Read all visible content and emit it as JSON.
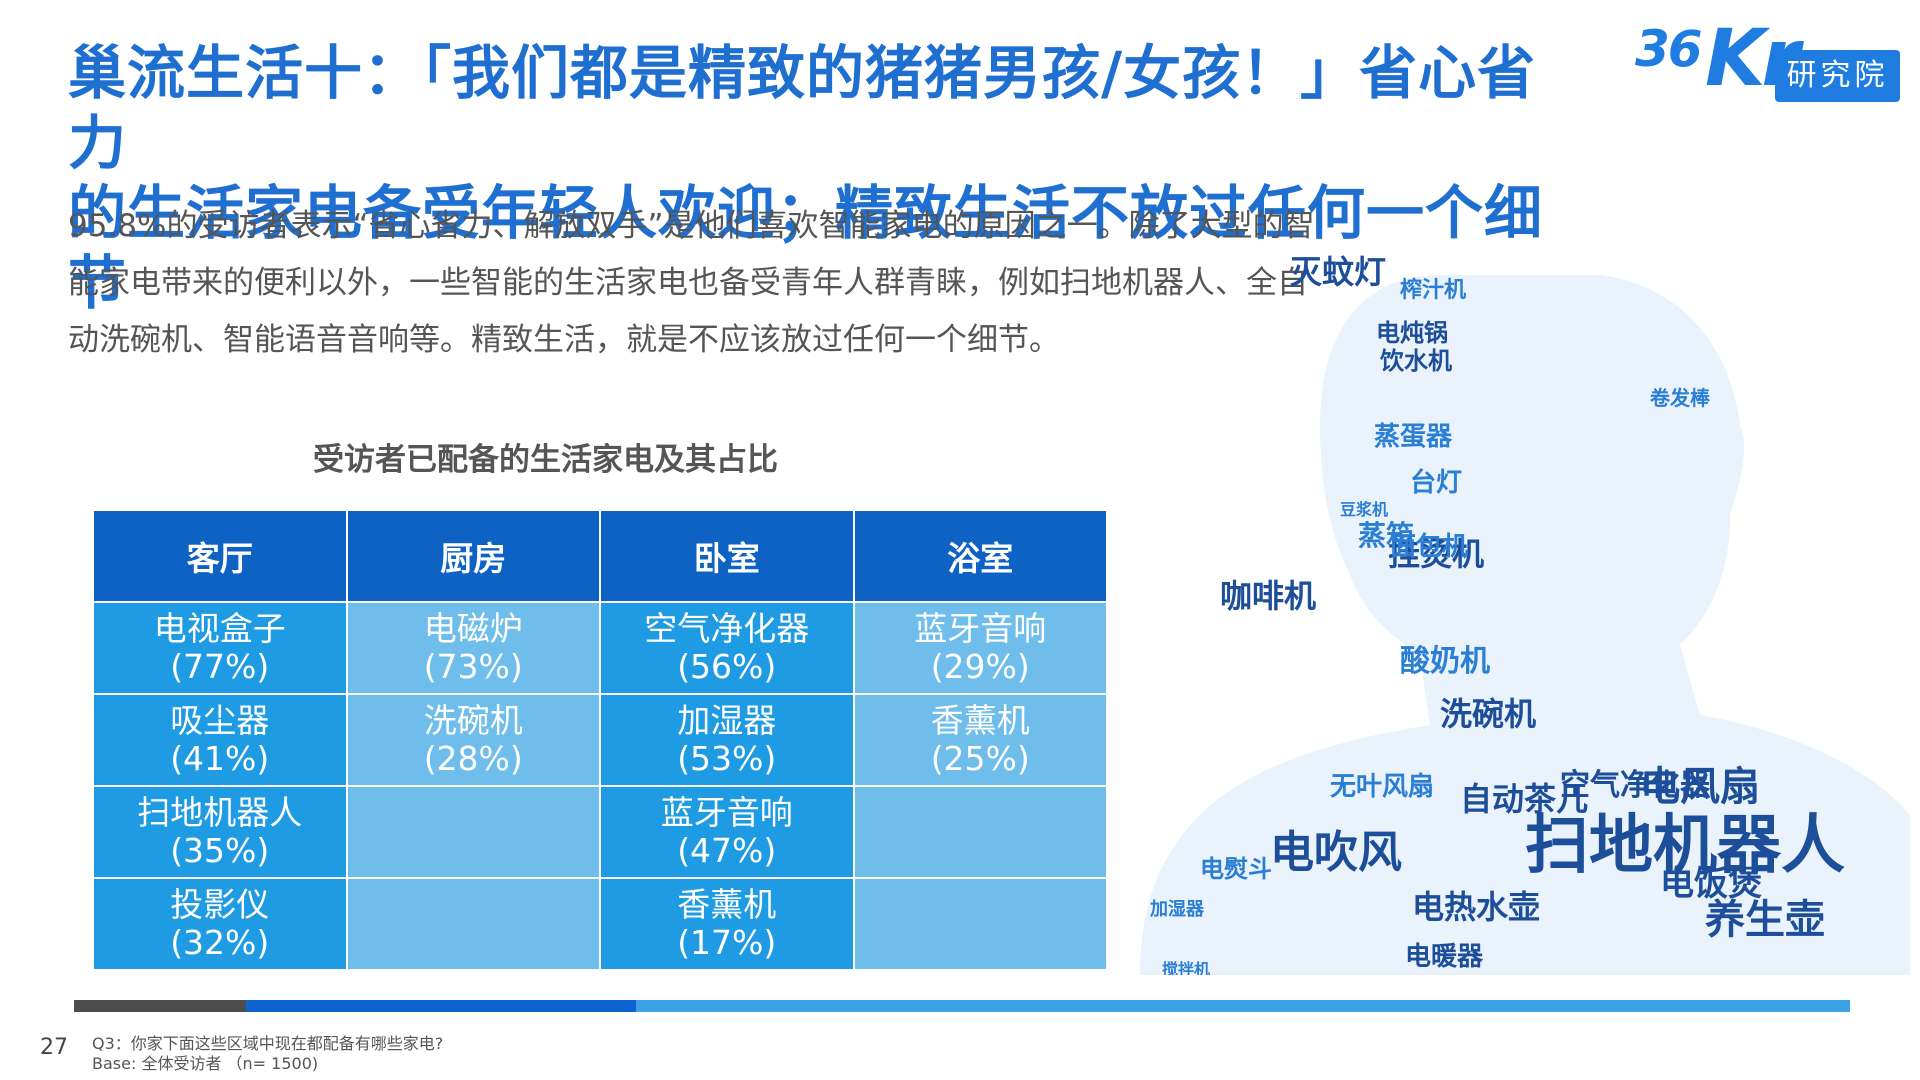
{
  "title_line1": "巢流生活十：「我们都是精致的猪猪男孩/女孩！」省心省力",
  "title_line2": "的生活家电备受年轻人欢迎；精致生活不放过任何一个细节",
  "logo": {
    "brand_36": "36",
    "brand_kr": "Kr",
    "label": "研究院"
  },
  "intro_text": "95.8%的受访者表示“省心省力、解放双手”是他们喜欢智能家电的原因之一。除了大型的智能家电带来的便利以外，一些智能的生活家电也备受青年人群青睐，例如扫地机器人、全自动洗碗机、智能语音音响等。精致生活，就是不应该放过任何一个细节。",
  "table_title": "受访者已配备的生活家电及其占比",
  "table": {
    "headers": [
      "客厅",
      "厨房",
      "卧室",
      "浴室"
    ],
    "rows": [
      [
        {
          "name": "电视盒子",
          "pct": "(77%)"
        },
        {
          "name": "电磁炉",
          "pct": "(73%)"
        },
        {
          "name": "空气净化器",
          "pct": "(56%)"
        },
        {
          "name": "蓝牙音响",
          "pct": "(29%)"
        }
      ],
      [
        {
          "name": "吸尘器",
          "pct": "(41%)"
        },
        {
          "name": "洗碗机",
          "pct": "(28%)"
        },
        {
          "name": "加湿器",
          "pct": "(53%)"
        },
        {
          "name": "香薰机",
          "pct": "(25%)"
        }
      ],
      [
        {
          "name": "扫地机器人",
          "pct": "(35%)"
        },
        {
          "name": "",
          "pct": ""
        },
        {
          "name": "蓝牙音响",
          "pct": "(47%)"
        },
        {
          "name": "",
          "pct": ""
        }
      ],
      [
        {
          "name": "投影仪",
          "pct": "(32%)"
        },
        {
          "name": "",
          "pct": ""
        },
        {
          "name": "香薰机",
          "pct": "(17%)"
        },
        {
          "name": "",
          "pct": ""
        }
      ]
    ]
  },
  "wordcloud_words": [
    "扫地机器人",
    "咖啡机",
    "灭蚊灯",
    "榨汁机",
    "挂烫机",
    "卷发棒",
    "电炖锅",
    "饮水机",
    "蒸蛋器",
    "台灯",
    "电饭煲",
    "蒸箱",
    "面包机",
    "洗碗机",
    "搅拌机",
    "酸奶机",
    "空气净化器",
    "无叶风扇",
    "自动茶几",
    "电风扇",
    "电吹风",
    "电熨斗",
    "电热水壶",
    "电暖器",
    "养生壶",
    "豆浆机",
    "加湿器"
  ],
  "colors": {
    "title": "#1F6FD1",
    "header_bg": "#0E62C3",
    "cell_dark": "#1E9BE3",
    "cell_light": "#6EBDEB",
    "wc_dark": "#1D4E9A",
    "wc_blue": "#2A7FD4",
    "wc_light": "#7FB2E5"
  },
  "page_number": "27",
  "footnote_q": "Q3：你家下面这些区域中现在都配备有哪些家电?",
  "footnote_base": "Base: 全体受访者 （n= 1500)"
}
